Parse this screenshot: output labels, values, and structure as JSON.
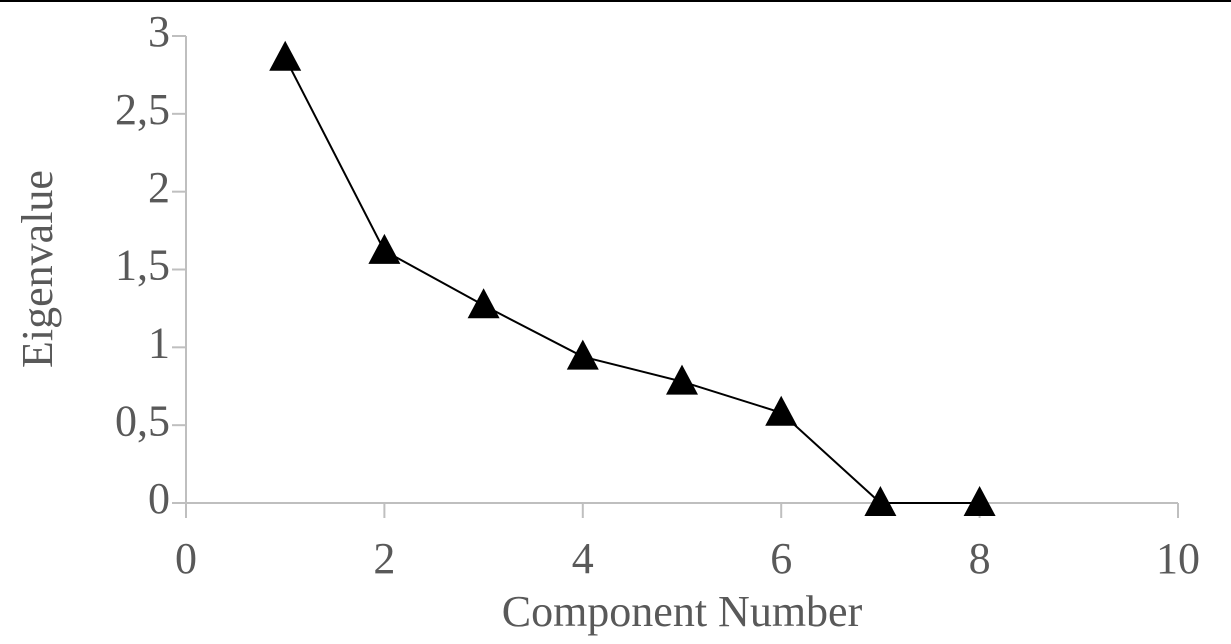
{
  "chart_data": {
    "type": "line",
    "x_label": "Component Number",
    "y_label": "Eigenvalue",
    "x": [
      1,
      2,
      3,
      4,
      5,
      6,
      7,
      8
    ],
    "values": [
      2.86,
      1.62,
      1.27,
      0.94,
      0.78,
      0.58,
      0,
      0
    ],
    "color": "#000000",
    "marker": "triangle",
    "xlim": [
      0,
      10
    ],
    "xticks": [
      0,
      2,
      4,
      6,
      8,
      10
    ],
    "ylim": [
      0,
      3
    ],
    "yticks": [
      0,
      {
        "value": 0.5,
        "label": "0,5"
      },
      1,
      {
        "value": 1.5,
        "label": "1,5"
      },
      2,
      {
        "value": 2.5,
        "label": "2,5"
      },
      3
    ]
  }
}
